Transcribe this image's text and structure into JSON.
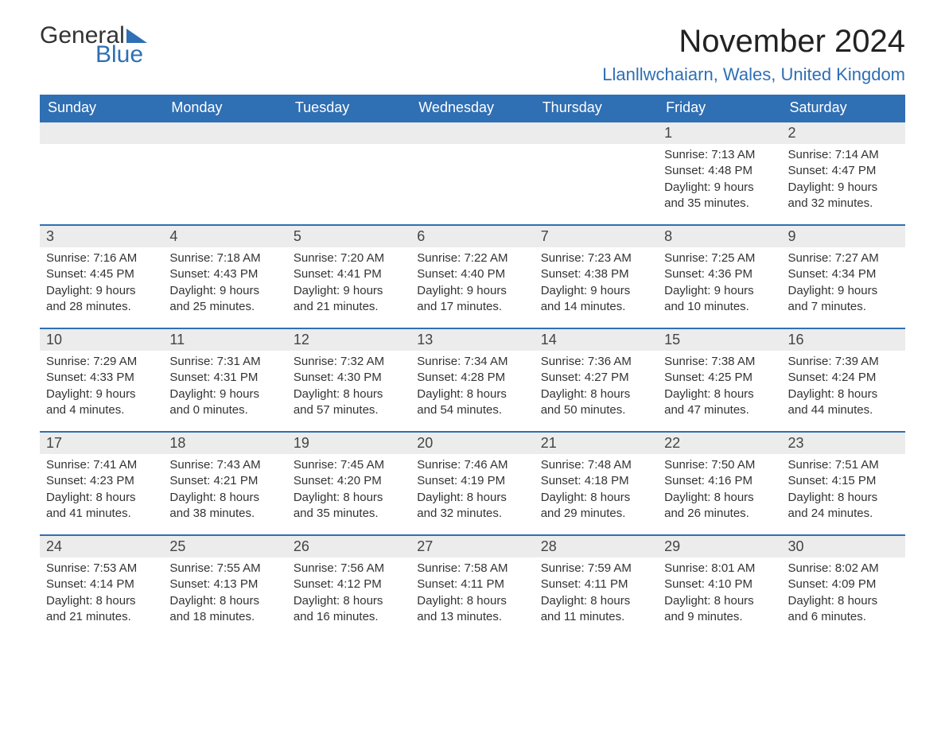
{
  "logo": {
    "part1": "General",
    "part2": "Blue"
  },
  "title": {
    "month": "November 2024",
    "location": "Llanllwchaiarn, Wales, United Kingdom"
  },
  "colors": {
    "header_bg": "#2f6fb3",
    "header_text": "#ffffff",
    "daynum_bg": "#ececec",
    "daynum_border": "#2f6fb3",
    "body_text": "#333333",
    "background": "#ffffff"
  },
  "typography": {
    "title_fontsize": 40,
    "location_fontsize": 22,
    "dayheader_fontsize": 18,
    "daynum_fontsize": 18,
    "body_fontsize": 15,
    "font_family": "Arial"
  },
  "dayHeaders": [
    "Sunday",
    "Monday",
    "Tuesday",
    "Wednesday",
    "Thursday",
    "Friday",
    "Saturday"
  ],
  "startOffset": 5,
  "days": [
    {
      "n": 1,
      "sunrise": "7:13 AM",
      "sunset": "4:48 PM",
      "dl1": "9 hours",
      "dl2": "and 35 minutes."
    },
    {
      "n": 2,
      "sunrise": "7:14 AM",
      "sunset": "4:47 PM",
      "dl1": "9 hours",
      "dl2": "and 32 minutes."
    },
    {
      "n": 3,
      "sunrise": "7:16 AM",
      "sunset": "4:45 PM",
      "dl1": "9 hours",
      "dl2": "and 28 minutes."
    },
    {
      "n": 4,
      "sunrise": "7:18 AM",
      "sunset": "4:43 PM",
      "dl1": "9 hours",
      "dl2": "and 25 minutes."
    },
    {
      "n": 5,
      "sunrise": "7:20 AM",
      "sunset": "4:41 PM",
      "dl1": "9 hours",
      "dl2": "and 21 minutes."
    },
    {
      "n": 6,
      "sunrise": "7:22 AM",
      "sunset": "4:40 PM",
      "dl1": "9 hours",
      "dl2": "and 17 minutes."
    },
    {
      "n": 7,
      "sunrise": "7:23 AM",
      "sunset": "4:38 PM",
      "dl1": "9 hours",
      "dl2": "and 14 minutes."
    },
    {
      "n": 8,
      "sunrise": "7:25 AM",
      "sunset": "4:36 PM",
      "dl1": "9 hours",
      "dl2": "and 10 minutes."
    },
    {
      "n": 9,
      "sunrise": "7:27 AM",
      "sunset": "4:34 PM",
      "dl1": "9 hours",
      "dl2": "and 7 minutes."
    },
    {
      "n": 10,
      "sunrise": "7:29 AM",
      "sunset": "4:33 PM",
      "dl1": "9 hours",
      "dl2": "and 4 minutes."
    },
    {
      "n": 11,
      "sunrise": "7:31 AM",
      "sunset": "4:31 PM",
      "dl1": "9 hours",
      "dl2": "and 0 minutes."
    },
    {
      "n": 12,
      "sunrise": "7:32 AM",
      "sunset": "4:30 PM",
      "dl1": "8 hours",
      "dl2": "and 57 minutes."
    },
    {
      "n": 13,
      "sunrise": "7:34 AM",
      "sunset": "4:28 PM",
      "dl1": "8 hours",
      "dl2": "and 54 minutes."
    },
    {
      "n": 14,
      "sunrise": "7:36 AM",
      "sunset": "4:27 PM",
      "dl1": "8 hours",
      "dl2": "and 50 minutes."
    },
    {
      "n": 15,
      "sunrise": "7:38 AM",
      "sunset": "4:25 PM",
      "dl1": "8 hours",
      "dl2": "and 47 minutes."
    },
    {
      "n": 16,
      "sunrise": "7:39 AM",
      "sunset": "4:24 PM",
      "dl1": "8 hours",
      "dl2": "and 44 minutes."
    },
    {
      "n": 17,
      "sunrise": "7:41 AM",
      "sunset": "4:23 PM",
      "dl1": "8 hours",
      "dl2": "and 41 minutes."
    },
    {
      "n": 18,
      "sunrise": "7:43 AM",
      "sunset": "4:21 PM",
      "dl1": "8 hours",
      "dl2": "and 38 minutes."
    },
    {
      "n": 19,
      "sunrise": "7:45 AM",
      "sunset": "4:20 PM",
      "dl1": "8 hours",
      "dl2": "and 35 minutes."
    },
    {
      "n": 20,
      "sunrise": "7:46 AM",
      "sunset": "4:19 PM",
      "dl1": "8 hours",
      "dl2": "and 32 minutes."
    },
    {
      "n": 21,
      "sunrise": "7:48 AM",
      "sunset": "4:18 PM",
      "dl1": "8 hours",
      "dl2": "and 29 minutes."
    },
    {
      "n": 22,
      "sunrise": "7:50 AM",
      "sunset": "4:16 PM",
      "dl1": "8 hours",
      "dl2": "and 26 minutes."
    },
    {
      "n": 23,
      "sunrise": "7:51 AM",
      "sunset": "4:15 PM",
      "dl1": "8 hours",
      "dl2": "and 24 minutes."
    },
    {
      "n": 24,
      "sunrise": "7:53 AM",
      "sunset": "4:14 PM",
      "dl1": "8 hours",
      "dl2": "and 21 minutes."
    },
    {
      "n": 25,
      "sunrise": "7:55 AM",
      "sunset": "4:13 PM",
      "dl1": "8 hours",
      "dl2": "and 18 minutes."
    },
    {
      "n": 26,
      "sunrise": "7:56 AM",
      "sunset": "4:12 PM",
      "dl1": "8 hours",
      "dl2": "and 16 minutes."
    },
    {
      "n": 27,
      "sunrise": "7:58 AM",
      "sunset": "4:11 PM",
      "dl1": "8 hours",
      "dl2": "and 13 minutes."
    },
    {
      "n": 28,
      "sunrise": "7:59 AM",
      "sunset": "4:11 PM",
      "dl1": "8 hours",
      "dl2": "and 11 minutes."
    },
    {
      "n": 29,
      "sunrise": "8:01 AM",
      "sunset": "4:10 PM",
      "dl1": "8 hours",
      "dl2": "and 9 minutes."
    },
    {
      "n": 30,
      "sunrise": "8:02 AM",
      "sunset": "4:09 PM",
      "dl1": "8 hours",
      "dl2": "and 6 minutes."
    }
  ],
  "labels": {
    "sunrise": "Sunrise: ",
    "sunset": "Sunset: ",
    "daylight": "Daylight: "
  }
}
